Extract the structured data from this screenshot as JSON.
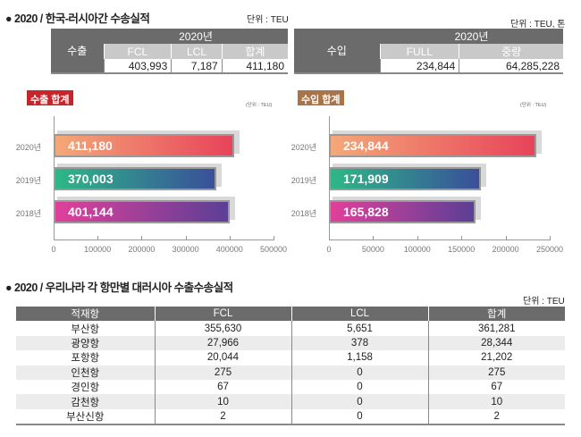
{
  "export_section": {
    "title": "● 2020 / 한국-러시아간 수송실적",
    "unit": "단위 : TEU",
    "row_header": "수출",
    "year_header": "2020년",
    "columns": [
      "FCL",
      "LCL",
      "합계"
    ],
    "values": [
      "403,993",
      "7,187",
      "411,180"
    ]
  },
  "import_section": {
    "unit": "단위 : TEU, 톤",
    "row_header": "수입",
    "year_header": "2020년",
    "columns": [
      "FULL",
      "중량"
    ],
    "values": [
      "234,844",
      "64,285,228"
    ]
  },
  "chart_data": [
    {
      "type": "bar",
      "title": "수출 합계",
      "unit": "(단위 : TEU)",
      "categories": [
        "2020년",
        "2019년",
        "2018년"
      ],
      "values": [
        411180,
        370003,
        401144
      ],
      "value_labels": [
        "411,180",
        "370,003",
        "401,144"
      ],
      "xlim": [
        0,
        500000
      ],
      "xticks": [
        "0",
        "100000",
        "200000",
        "300000",
        "400000",
        "500000"
      ],
      "tick_values": [
        0,
        100000,
        200000,
        300000,
        400000,
        500000
      ],
      "badge_color": "#c8252b",
      "gradients": [
        [
          "#f4a878",
          "#e8435a"
        ],
        [
          "#2db887",
          "#3a4f9a"
        ],
        [
          "#e0409a",
          "#5b3f96"
        ]
      ]
    },
    {
      "type": "bar",
      "title": "수입 합계",
      "unit": "(단위 : TEU)",
      "categories": [
        "2020년",
        "2019년",
        "2018년"
      ],
      "values": [
        234844,
        171909,
        165828
      ],
      "value_labels": [
        "234,844",
        "171,909",
        "165,828"
      ],
      "xlim": [
        0,
        250000
      ],
      "xticks": [
        "0",
        "50000",
        "100000",
        "150000",
        "200000",
        "250000"
      ],
      "tick_values": [
        0,
        50000,
        100000,
        150000,
        200000,
        250000
      ],
      "badge_color": "#a8744a",
      "gradients": [
        [
          "#f4a878",
          "#e8435a"
        ],
        [
          "#2db887",
          "#3a4f9a"
        ],
        [
          "#e0409a",
          "#5b3f96"
        ]
      ]
    }
  ],
  "ports_section": {
    "title": "● 2020 / 우리나라 각 항만별 대러시아 수출수송실적",
    "unit": "단위 : TEU",
    "columns": [
      "적재항",
      "FCL",
      "LCL",
      "합계"
    ],
    "rows": [
      [
        "부산항",
        "355,630",
        "5,651",
        "361,281"
      ],
      [
        "광양항",
        "27,966",
        "378",
        "28,344"
      ],
      [
        "포항항",
        "20,044",
        "1,158",
        "21,202"
      ],
      [
        "인천항",
        "275",
        "0",
        "275"
      ],
      [
        "경인항",
        "67",
        "0",
        "67"
      ],
      [
        "감천항",
        "10",
        "0",
        "10"
      ],
      [
        "부산신항",
        "2",
        "0",
        "2"
      ]
    ]
  }
}
